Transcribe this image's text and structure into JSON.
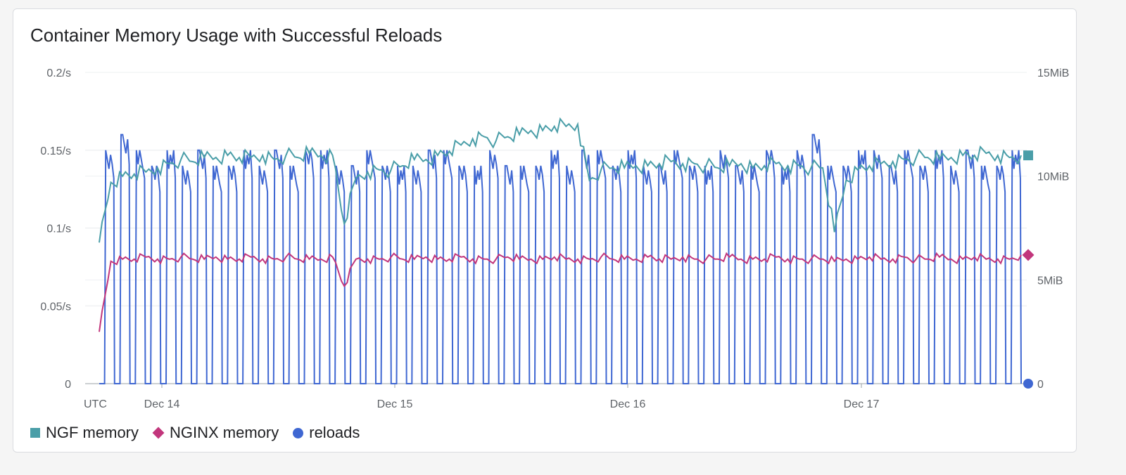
{
  "chart_data": {
    "type": "line",
    "title": "Container Memory Usage with Successful Reloads",
    "timezone_label": "UTC",
    "x_ticks": [
      "Dec 14",
      "Dec 15",
      "Dec 16",
      "Dec 17"
    ],
    "left_axis": {
      "ticks": [
        "0",
        "0.05/s",
        "0.1/s",
        "0.15/s",
        "0.2/s"
      ],
      "ylim": [
        0,
        0.2
      ]
    },
    "right_axis": {
      "ticks": [
        "0",
        "5MiB",
        "10MiB",
        "15MiB"
      ],
      "ylim": [
        0,
        15
      ]
    },
    "series": [
      {
        "name": "NGF memory",
        "axis": "right",
        "color": "#4a9ea8",
        "marker": "square",
        "values_mib": [
          6.8,
          9.7,
          10.0,
          10.1,
          10.2,
          10.4,
          10.6,
          10.8,
          10.7,
          10.9,
          10.9,
          11.0,
          10.9,
          10.9,
          11.0,
          10.8,
          11.0,
          10.9,
          11.1,
          11.0,
          11.0,
          7.7,
          9.9,
          10.2,
          10.3,
          10.3,
          10.5,
          10.8,
          10.8,
          11.0,
          11.2,
          11.5,
          11.8,
          11.9,
          11.7,
          11.9,
          12.0,
          12.2,
          12.2,
          12.4,
          12.4,
          12.5,
          9.8,
          10.3,
          10.4,
          10.4,
          10.5,
          10.5,
          10.6,
          10.7,
          10.6,
          10.6,
          10.5,
          10.4,
          10.5,
          10.6,
          10.4,
          10.5,
          10.6,
          10.5,
          10.5,
          10.4,
          10.4,
          7.3,
          9.8,
          10.3,
          10.5,
          10.6,
          10.7,
          10.8,
          10.9,
          10.9,
          10.8,
          10.9,
          11.0,
          11.0,
          11.1,
          11.0,
          10.9,
          11.0
        ]
      },
      {
        "name": "NGINX memory",
        "axis": "right",
        "color": "#c2367c",
        "marker": "diamond",
        "values_mib": [
          2.5,
          5.9,
          6.0,
          6.0,
          6.1,
          6.0,
          6.0,
          6.1,
          6.0,
          6.0,
          6.1,
          6.0,
          6.0,
          6.1,
          6.0,
          6.0,
          6.1,
          6.0,
          6.0,
          6.0,
          6.1,
          4.7,
          6.0,
          6.0,
          6.0,
          6.1,
          6.0,
          6.0,
          6.1,
          6.0,
          6.0,
          6.1,
          6.0,
          6.0,
          6.0,
          6.1,
          6.0,
          6.0,
          6.0,
          6.1,
          6.0,
          6.0,
          6.0,
          6.1,
          6.0,
          6.0,
          6.0,
          6.1,
          6.0,
          6.0,
          6.1,
          6.0,
          6.0,
          6.0,
          6.1,
          6.0,
          6.0,
          6.0,
          6.1,
          6.0,
          6.0,
          6.0,
          6.0,
          5.9,
          6.0,
          6.0,
          6.1,
          6.0,
          6.0,
          6.1,
          6.0,
          6.0,
          6.1,
          6.0,
          6.0,
          6.1,
          6.0,
          6.0,
          6.0,
          6.2
        ]
      },
      {
        "name": "reloads",
        "axis": "left",
        "color": "#3f67d2",
        "marker": "circle",
        "pulse_peak_per_s": [
          0.15,
          0.16,
          0.15,
          0.14,
          0.15,
          0.14,
          0.15,
          0.14,
          0.14,
          0.15,
          0.14,
          0.15,
          0.14,
          0.15,
          0.15,
          0.14,
          0.14,
          0.15,
          0.14,
          0.14,
          0.14,
          0.15,
          0.15,
          0.14,
          0.14,
          0.15,
          0.14,
          0.14,
          0.14,
          0.15,
          0.14,
          0.15,
          0.15,
          0.14,
          0.15,
          0.14,
          0.14,
          0.15,
          0.14,
          0.14,
          0.15,
          0.14,
          0.14,
          0.15,
          0.14,
          0.15,
          0.16,
          0.14,
          0.14,
          0.15,
          0.15,
          0.14,
          0.15,
          0.14,
          0.15,
          0.14,
          0.15,
          0.14,
          0.14,
          0.15
        ],
        "baseline_per_s": 0
      }
    ],
    "grid": true,
    "legend_position": "bottom-left"
  }
}
